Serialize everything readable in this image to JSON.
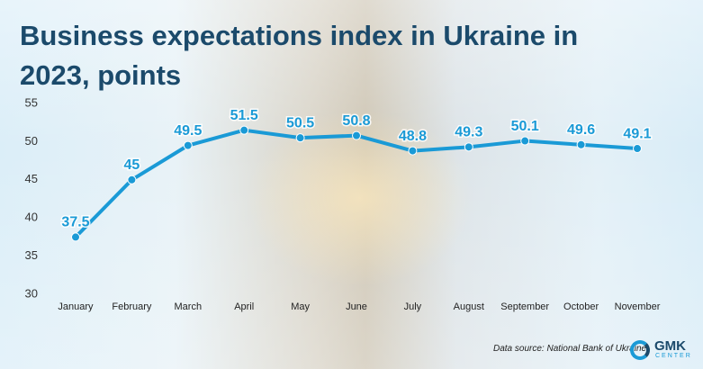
{
  "chart_data": {
    "type": "line",
    "title": "Business expectations index in Ukraine in 2023, points",
    "categories": [
      "January",
      "February",
      "March",
      "April",
      "May",
      "June",
      "July",
      "August",
      "September",
      "October",
      "November"
    ],
    "values": [
      37.5,
      45,
      49.5,
      51.5,
      50.5,
      50.8,
      48.8,
      49.3,
      50.1,
      49.6,
      49.1
    ],
    "color": "#1a9ad6",
    "ylim": [
      30,
      55
    ],
    "yticks": [
      30,
      35,
      40,
      45,
      50,
      55
    ],
    "grid": false,
    "source": "Data source: National Bank of Ukraine",
    "logo": {
      "main": "GMK",
      "sub": "CENTER"
    }
  }
}
